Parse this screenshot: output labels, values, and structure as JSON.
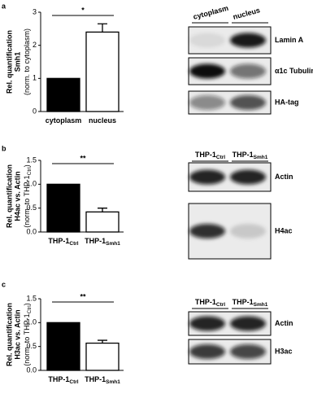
{
  "chart_data": [
    {
      "type": "bar",
      "panel": "a",
      "ylabel": [
        "Rel. quantification",
        "Smh1"
      ],
      "ylabel_note": {
        "text": "(norm. to cytoplasm)"
      },
      "categories": [
        {
          "text": "cytoplasm"
        },
        {
          "text": "nucleus"
        }
      ],
      "values": [
        1,
        2.4
      ],
      "errors": [
        null,
        0.25
      ],
      "colors": [
        "#000000",
        "#ffffff"
      ],
      "ylim": [
        0,
        3
      ],
      "yticks": [
        0,
        1,
        2,
        3
      ],
      "significance": "*",
      "blot": {
        "lanes": [
          {
            "text": "cytoplasm"
          },
          {
            "text": "nucleus"
          }
        ],
        "rows": [
          "Lamin A",
          "α1c Tubulin",
          "HA-tag"
        ]
      }
    },
    {
      "type": "bar",
      "panel": "b",
      "ylabel": [
        "Rel. quantification",
        "H4ac vs. Actin"
      ],
      "ylabel_note": {
        "text": "(norm. to THP-1",
        "sub": "Ctrl",
        "tail": ")"
      },
      "categories": [
        {
          "text": "THP-1",
          "sub": "Ctrl"
        },
        {
          "text": "THP-1",
          "sub": "Smh1"
        }
      ],
      "values": [
        1.0,
        0.42
      ],
      "errors": [
        null,
        0.08
      ],
      "colors": [
        "#000000",
        "#ffffff"
      ],
      "ylim": [
        0,
        1.5
      ],
      "yticks": [
        {
          "value": 0,
          "label": "0.0"
        },
        0.5,
        {
          "value": 1,
          "label": "1.0"
        },
        1.5
      ],
      "significance": "**",
      "blot": {
        "lanes": [
          {
            "text": "THP-1",
            "sub": "Ctrl"
          },
          {
            "text": "THP-1",
            "sub": "Smh1"
          }
        ],
        "rows": [
          "Actin",
          "H4ac"
        ]
      }
    },
    {
      "type": "bar",
      "panel": "c",
      "ylabel": [
        "Rel. quantification",
        "H3ac vs. Actin"
      ],
      "ylabel_note": {
        "text": "(norm. to THP-1",
        "sub": "Ctrl",
        "tail": ")"
      },
      "categories": [
        {
          "text": "THP-1",
          "sub": "Ctrl"
        },
        {
          "text": "THP-1",
          "sub": "Smh1"
        }
      ],
      "values": [
        1.0,
        0.57
      ],
      "errors": [
        null,
        0.06
      ],
      "colors": [
        "#000000",
        "#ffffff"
      ],
      "ylim": [
        0,
        1.5
      ],
      "yticks": [
        {
          "value": 0,
          "label": "0.0"
        },
        0.5,
        {
          "value": 1,
          "label": "1.0"
        },
        1.5
      ],
      "significance": "**",
      "blot": {
        "lanes": [
          {
            "text": "THP-1",
            "sub": "Ctrl"
          },
          {
            "text": "THP-1",
            "sub": "Smh1"
          }
        ],
        "rows": [
          "Actin",
          "H3ac"
        ]
      }
    }
  ]
}
